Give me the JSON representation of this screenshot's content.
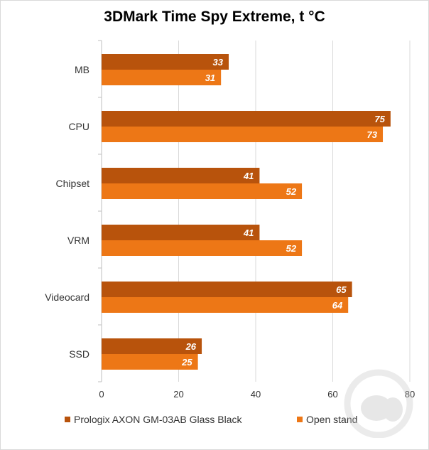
{
  "chart_data": {
    "type": "bar",
    "orientation": "horizontal",
    "title": "3DMark Time Spy Extreme, t °C",
    "categories": [
      "MB",
      "CPU",
      "Chipset",
      "VRM",
      "Videocard",
      "SSD"
    ],
    "series": [
      {
        "name": "Prologix AXON GM-03AB Glass Black",
        "color": "#b8530c",
        "values": [
          33,
          75,
          41,
          41,
          65,
          26
        ]
      },
      {
        "name": "Open stand",
        "color": "#ed7716",
        "values": [
          31,
          73,
          52,
          52,
          64,
          25
        ]
      }
    ],
    "xlim": [
      0,
      80
    ],
    "xticks": [
      0,
      20,
      40,
      60,
      80
    ],
    "grid": "vertical",
    "legend": "bottom"
  }
}
